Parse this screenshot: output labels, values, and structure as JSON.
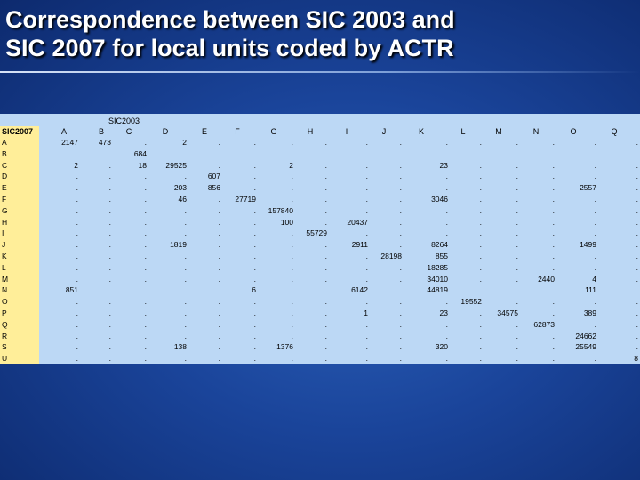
{
  "slide": {
    "title_line1": "Correspondence between SIC 2003 and",
    "title_line2": "SIC 2007 for local units coded by ACTR"
  },
  "table": {
    "super_header": "SIC2003",
    "corner_label": "SIC2007",
    "columns": [
      "A",
      "B",
      "C",
      "D",
      "E",
      "F",
      "G",
      "H",
      "I",
      "J",
      "K",
      "L",
      "M",
      "N",
      "O",
      "Q"
    ],
    "rows": [
      "A",
      "B",
      "C",
      "D",
      "E",
      "F",
      "G",
      "H",
      "I",
      "J",
      "K",
      "L",
      "M",
      "N",
      "O",
      "P",
      "Q",
      "R",
      "S",
      "U"
    ],
    "cells": [
      {
        "r": 0,
        "c": 0,
        "v": "2147"
      },
      {
        "r": 0,
        "c": 1,
        "v": "473"
      },
      {
        "r": 0,
        "c": 3,
        "v": "2"
      },
      {
        "r": 1,
        "c": 2,
        "v": "684"
      },
      {
        "r": 2,
        "c": 0,
        "v": "2"
      },
      {
        "r": 2,
        "c": 2,
        "v": "18"
      },
      {
        "r": 2,
        "c": 3,
        "v": "29525"
      },
      {
        "r": 2,
        "c": 6,
        "v": "2"
      },
      {
        "r": 2,
        "c": 10,
        "v": "23"
      },
      {
        "r": 3,
        "c": 4,
        "v": "607"
      },
      {
        "r": 4,
        "c": 3,
        "v": "203"
      },
      {
        "r": 4,
        "c": 4,
        "v": "856"
      },
      {
        "r": 4,
        "c": 14,
        "v": "2557"
      },
      {
        "r": 5,
        "c": 3,
        "v": "46"
      },
      {
        "r": 5,
        "c": 5,
        "v": "27719"
      },
      {
        "r": 5,
        "c": 10,
        "v": "3046"
      },
      {
        "r": 6,
        "c": 6,
        "v": "157840"
      },
      {
        "r": 7,
        "c": 6,
        "v": "100"
      },
      {
        "r": 7,
        "c": 8,
        "v": "20437"
      },
      {
        "r": 8,
        "c": 7,
        "v": "55729"
      },
      {
        "r": 9,
        "c": 3,
        "v": "1819"
      },
      {
        "r": 9,
        "c": 8,
        "v": "2911"
      },
      {
        "r": 9,
        "c": 10,
        "v": "8264"
      },
      {
        "r": 9,
        "c": 14,
        "v": "1499"
      },
      {
        "r": 10,
        "c": 9,
        "v": "28198"
      },
      {
        "r": 10,
        "c": 10,
        "v": "855"
      },
      {
        "r": 11,
        "c": 10,
        "v": "18285"
      },
      {
        "r": 12,
        "c": 10,
        "v": "34010"
      },
      {
        "r": 12,
        "c": 13,
        "v": "2440"
      },
      {
        "r": 12,
        "c": 14,
        "v": "4"
      },
      {
        "r": 13,
        "c": 0,
        "v": "851"
      },
      {
        "r": 13,
        "c": 5,
        "v": "6"
      },
      {
        "r": 13,
        "c": 8,
        "v": "6142"
      },
      {
        "r": 13,
        "c": 10,
        "v": "44819"
      },
      {
        "r": 13,
        "c": 14,
        "v": "111"
      },
      {
        "r": 14,
        "c": 11,
        "v": "19552"
      },
      {
        "r": 15,
        "c": 8,
        "v": "1"
      },
      {
        "r": 15,
        "c": 10,
        "v": "23"
      },
      {
        "r": 15,
        "c": 12,
        "v": "34575"
      },
      {
        "r": 15,
        "c": 14,
        "v": "389"
      },
      {
        "r": 16,
        "c": 13,
        "v": "62873"
      },
      {
        "r": 17,
        "c": 14,
        "v": "24662"
      },
      {
        "r": 18,
        "c": 3,
        "v": "138"
      },
      {
        "r": 18,
        "c": 6,
        "v": "1376"
      },
      {
        "r": 18,
        "c": 10,
        "v": "320"
      },
      {
        "r": 18,
        "c": 14,
        "v": "25549"
      },
      {
        "r": 19,
        "c": 15,
        "v": "8"
      }
    ],
    "empty_marker": "."
  }
}
